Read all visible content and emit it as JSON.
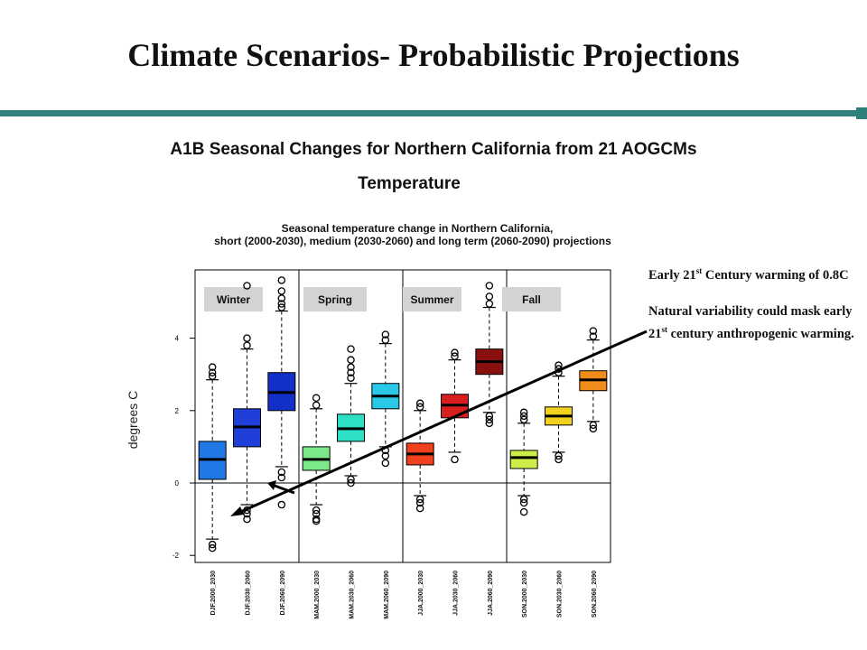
{
  "slide": {
    "title": "Climate Scenarios- Probabilistic Projections",
    "subtitle": "A1B Seasonal Changes for Northern California from 21 AOGCMs",
    "variable": "Temperature",
    "colors": {
      "rule": "#2f7f7a"
    }
  },
  "notes": {
    "note1": {
      "pre": "Early 21",
      "sup": "st",
      "post": " Century warming of 0.8C"
    },
    "note2": {
      "pre": "Natural variability could mask early 21",
      "sup": "st",
      "post": " century anthropogenic warming."
    }
  },
  "chart_data": {
    "type": "boxplot",
    "title": "Seasonal temperature change in Northern California,",
    "subtitle": "short (2000-2030), medium (2030-2060) and long term (2060-2090) projections",
    "ylabel": "degrees C",
    "ylim": [
      -2.2,
      5.6
    ],
    "yticks": [
      -2,
      0,
      2,
      4
    ],
    "panels": [
      "Winter",
      "Spring",
      "Summer",
      "Fall"
    ],
    "categories": [
      "DJF.2000_2030",
      "DJF.2030_2060",
      "DJF.2060_2090",
      "MAM.2000_2030",
      "MAM.2030_2060",
      "MAM.2060_2090",
      "JJA.2000_2030",
      "JJA.2030_2060",
      "JJA.2060_2090",
      "SON.2000_2030",
      "SON.2030_2060",
      "SON.2060_2090"
    ],
    "boxes": [
      {
        "q1": 0.1,
        "median": 0.65,
        "q3": 1.15,
        "wlo": -1.55,
        "whi": 2.85,
        "outliers": [
          -1.7,
          -1.8,
          2.95,
          3.05,
          3.2
        ],
        "color": "#1f78e6"
      },
      {
        "q1": 1.0,
        "median": 1.55,
        "q3": 2.05,
        "wlo": -0.6,
        "whi": 3.7,
        "outliers": [
          -0.75,
          -0.85,
          -1.0,
          3.8,
          4.0,
          5.45
        ],
        "color": "#1f3fd8"
      },
      {
        "q1": 2.0,
        "median": 2.5,
        "q3": 3.05,
        "wlo": 0.45,
        "whi": 4.75,
        "outliers": [
          0.3,
          0.15,
          -0.6,
          4.85,
          4.95,
          5.1,
          5.3,
          5.6
        ],
        "color": "#1230c8"
      },
      {
        "q1": 0.35,
        "median": 0.65,
        "q3": 1.0,
        "wlo": -0.6,
        "whi": 2.05,
        "outliers": [
          -0.75,
          -0.85,
          -1.0,
          -1.05,
          2.15,
          2.35
        ],
        "color": "#7de88a"
      },
      {
        "q1": 1.15,
        "median": 1.5,
        "q3": 1.9,
        "wlo": 0.2,
        "whi": 2.75,
        "outliers": [
          0.1,
          0.0,
          2.9,
          3.05,
          3.2,
          3.4,
          3.7
        ],
        "color": "#2de0c4"
      },
      {
        "q1": 2.05,
        "median": 2.4,
        "q3": 2.75,
        "wlo": 1.0,
        "whi": 3.85,
        "outliers": [
          0.9,
          0.75,
          0.55,
          3.95,
          4.1
        ],
        "color": "#29c8e6"
      },
      {
        "q1": 0.5,
        "median": 0.8,
        "q3": 1.1,
        "wlo": -0.35,
        "whi": 2.0,
        "outliers": [
          -0.45,
          -0.55,
          -0.7,
          2.1,
          2.2
        ],
        "color": "#f0401e"
      },
      {
        "q1": 1.8,
        "median": 2.15,
        "q3": 2.45,
        "wlo": 0.85,
        "whi": 3.4,
        "outliers": [
          0.65,
          3.5,
          3.6
        ],
        "color": "#d81e1e"
      },
      {
        "q1": 3.0,
        "median": 3.35,
        "q3": 3.7,
        "wlo": 1.95,
        "whi": 4.85,
        "outliers": [
          1.85,
          1.75,
          1.65,
          4.95,
          5.15,
          5.45
        ],
        "color": "#8a1010"
      },
      {
        "q1": 0.4,
        "median": 0.7,
        "q3": 0.9,
        "wlo": -0.35,
        "whi": 1.65,
        "outliers": [
          -0.45,
          -0.55,
          -0.8,
          1.75,
          1.85,
          1.95
        ],
        "color": "#cdee48"
      },
      {
        "q1": 1.6,
        "median": 1.85,
        "q3": 2.1,
        "wlo": 0.85,
        "whi": 2.95,
        "outliers": [
          0.75,
          0.65,
          3.05,
          3.15,
          3.25
        ],
        "color": "#f3d21f"
      },
      {
        "q1": 2.55,
        "median": 2.85,
        "q3": 3.1,
        "wlo": 1.7,
        "whi": 3.95,
        "outliers": [
          1.6,
          1.5,
          4.05,
          4.2
        ],
        "color": "#f08c1a"
      }
    ]
  }
}
